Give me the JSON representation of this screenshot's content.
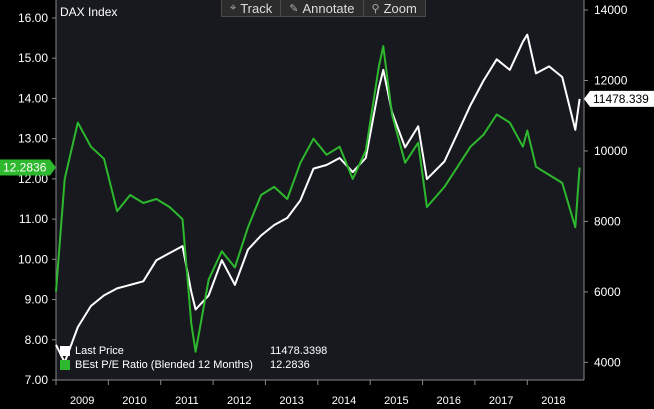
{
  "toolbar": {
    "track_label": "Track",
    "annotate_label": "Annotate",
    "zoom_label": "Zoom"
  },
  "colors": {
    "last_price": "#ffffff",
    "pe_ratio": "#2db82d",
    "background": "#000000",
    "panel": "#17191f"
  },
  "legend": {
    "items": [
      {
        "label": "Last Price",
        "value": "11478.3398",
        "color": "#ffffff"
      },
      {
        "label": "BEst P/E Ratio (Blended 12 Months)",
        "value": "12.2836",
        "color": "#2db82d"
      }
    ]
  },
  "chart_data": {
    "type": "line",
    "title": "DAX Index",
    "x": [
      "2009-01",
      "2009-03",
      "2009-06",
      "2009-09",
      "2009-12",
      "2010-03",
      "2010-06",
      "2010-09",
      "2010-12",
      "2011-03",
      "2011-06",
      "2011-08",
      "2011-09",
      "2011-12",
      "2012-03",
      "2012-06",
      "2012-09",
      "2012-12",
      "2013-03",
      "2013-06",
      "2013-09",
      "2013-12",
      "2014-03",
      "2014-06",
      "2014-09",
      "2014-12",
      "2015-03",
      "2015-04",
      "2015-06",
      "2015-09",
      "2015-12",
      "2016-02",
      "2016-06",
      "2016-09",
      "2016-12",
      "2017-03",
      "2017-06",
      "2017-09",
      "2017-12",
      "2018-01",
      "2018-03",
      "2018-06",
      "2018-09",
      "2018-12",
      "2019-01"
    ],
    "series": [
      {
        "name": "Last Price",
        "axis": "right",
        "color": "#ffffff",
        "values": [
          4500,
          4000,
          5000,
          5600,
          5900,
          6100,
          6200,
          6300,
          6900,
          7100,
          7300,
          6000,
          5500,
          5900,
          6900,
          6200,
          7200,
          7600,
          7900,
          8100,
          8600,
          9500,
          9600,
          9800,
          9400,
          9800,
          11800,
          12300,
          11100,
          10100,
          10700,
          9200,
          9700,
          10500,
          11300,
          12000,
          12600,
          12300,
          13100,
          13300,
          12200,
          12400,
          12100,
          10600,
          11478
        ]
      },
      {
        "name": "BEst P/E Ratio (Blended 12 Months)",
        "axis": "left",
        "color": "#2db82d",
        "values": [
          9.2,
          12.0,
          13.4,
          12.8,
          12.5,
          11.2,
          11.6,
          11.4,
          11.5,
          11.3,
          11.0,
          8.4,
          7.7,
          9.5,
          10.2,
          9.8,
          10.8,
          11.6,
          11.8,
          11.5,
          12.4,
          13.0,
          12.6,
          12.8,
          12.0,
          12.7,
          14.8,
          15.3,
          13.6,
          12.4,
          12.9,
          11.3,
          11.8,
          12.3,
          12.8,
          13.1,
          13.6,
          13.4,
          12.8,
          13.2,
          12.3,
          12.1,
          11.9,
          10.8,
          12.2836
        ]
      }
    ],
    "xlabels": [
      "2009",
      "2010",
      "2011",
      "2012",
      "2013",
      "2014",
      "2015",
      "2016",
      "2017",
      "2018"
    ],
    "y_left_ticks": [
      "7.00",
      "8.00",
      "9.00",
      "10.00",
      "11.00",
      "12.00",
      "13.00",
      "14.00",
      "15.00",
      "16.00"
    ],
    "y_right_ticks": [
      "4000",
      "6000",
      "8000",
      "10000",
      "12000",
      "14000"
    ],
    "ylim_left": [
      7,
      16
    ],
    "ylim_right": [
      3500,
      14000
    ],
    "last_labels": {
      "left": "12.2836",
      "right": "11478.339"
    },
    "grid": false,
    "legend_position": "bottom-left"
  }
}
